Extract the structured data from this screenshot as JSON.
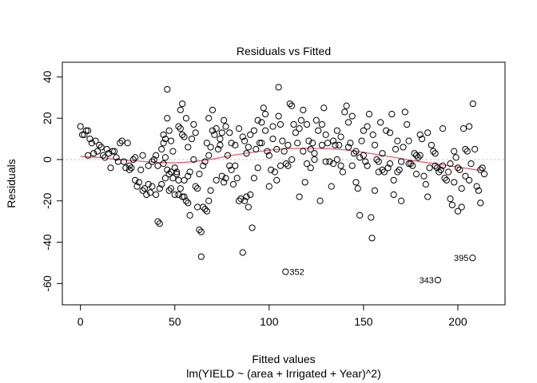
{
  "chart_data": {
    "type": "scatter",
    "title": "Residuals vs Fitted",
    "xlabel": "Fitted values",
    "subtitle": "lm(YIELD ~ (area + Irrigated + Year)^2)",
    "ylabel": "Residuals",
    "xlim": [
      -9.6,
      225
    ],
    "ylim": [
      -70.3,
      47.1
    ],
    "x_ticks": [
      0,
      50,
      100,
      150,
      200
    ],
    "y_ticks": [
      -60,
      -40,
      -20,
      0,
      20,
      40
    ],
    "x_tick_labels": [
      "0",
      "50",
      "100",
      "150",
      "200"
    ],
    "y_tick_labels": [
      "-60",
      "-40",
      "-20",
      "0",
      "20",
      "40"
    ],
    "reference_line_y": 0,
    "colors": {
      "points": "#000000",
      "smooth": "#DF536B",
      "reference": "#BEBEBE"
    },
    "points": [
      [
        0,
        16
      ],
      [
        1,
        12
      ],
      [
        2,
        12
      ],
      [
        3,
        14
      ],
      [
        4,
        14
      ],
      [
        5,
        10
      ],
      [
        6,
        8
      ],
      [
        7,
        3
      ],
      [
        4,
        2
      ],
      [
        8,
        9
      ],
      [
        9,
        4
      ],
      [
        10,
        7
      ],
      [
        11,
        6
      ],
      [
        12,
        2
      ],
      [
        13,
        1
      ],
      [
        14,
        5
      ],
      [
        15,
        3
      ],
      [
        16,
        -4
      ],
      [
        17,
        4
      ],
      [
        18,
        4
      ],
      [
        19,
        1
      ],
      [
        20,
        -1
      ],
      [
        21,
        8
      ],
      [
        22,
        9
      ],
      [
        23,
        -1
      ],
      [
        24,
        -4
      ],
      [
        25,
        8
      ],
      [
        26,
        -5
      ],
      [
        27,
        -4
      ],
      [
        28,
        0
      ],
      [
        29,
        -10
      ],
      [
        30,
        -13
      ],
      [
        31,
        -11
      ],
      [
        32,
        -5
      ],
      [
        33,
        -15
      ],
      [
        34,
        -14
      ],
      [
        35,
        -17
      ],
      [
        36,
        -12
      ],
      [
        37,
        -16
      ],
      [
        38,
        -13
      ],
      [
        39,
        0
      ],
      [
        40,
        2
      ],
      [
        41,
        -3
      ],
      [
        42,
        -14
      ],
      [
        43,
        -12
      ],
      [
        44,
        -2
      ],
      [
        45,
        1
      ],
      [
        46,
        -5
      ],
      [
        47,
        -15
      ],
      [
        48,
        -14
      ],
      [
        26,
        -3
      ],
      [
        29,
        1
      ],
      [
        33,
        2
      ],
      [
        36,
        -3
      ],
      [
        38,
        -1
      ],
      [
        40,
        -17
      ],
      [
        41,
        -30
      ],
      [
        42,
        -31
      ],
      [
        44,
        12
      ],
      [
        45,
        10
      ],
      [
        46,
        20
      ],
      [
        46,
        34
      ],
      [
        47,
        14
      ],
      [
        48,
        9
      ],
      [
        49,
        4
      ],
      [
        50,
        -4
      ],
      [
        51,
        -6
      ],
      [
        52,
        16
      ],
      [
        53,
        15
      ],
      [
        54,
        12
      ],
      [
        55,
        -10
      ],
      [
        56,
        20
      ],
      [
        57,
        -8
      ],
      [
        58,
        -6
      ],
      [
        50,
        -17
      ],
      [
        52,
        -17
      ],
      [
        53,
        -14
      ],
      [
        55,
        -18
      ],
      [
        43,
        5
      ],
      [
        44,
        8
      ],
      [
        45,
        -9
      ],
      [
        47,
        -7
      ],
      [
        48,
        -6
      ],
      [
        49,
        -9
      ],
      [
        51,
        -7
      ],
      [
        52,
        -10
      ],
      [
        54,
        -18
      ],
      [
        56,
        -20
      ],
      [
        57,
        -21
      ],
      [
        58,
        -27
      ],
      [
        53,
        24
      ],
      [
        54,
        27
      ],
      [
        55,
        11
      ],
      [
        57,
        6
      ],
      [
        59,
        10
      ],
      [
        60,
        17
      ],
      [
        61,
        13
      ],
      [
        62,
        -23
      ],
      [
        63,
        -34
      ],
      [
        64,
        -35
      ],
      [
        64,
        -47
      ],
      [
        65,
        -23
      ],
      [
        66,
        -24
      ],
      [
        67,
        -25
      ],
      [
        68,
        -20
      ],
      [
        69,
        -15
      ],
      [
        60,
        0
      ],
      [
        61,
        -13
      ],
      [
        62,
        -14
      ],
      [
        63,
        -7
      ],
      [
        65,
        -3
      ],
      [
        66,
        -1
      ],
      [
        67,
        8
      ],
      [
        68,
        2
      ],
      [
        69,
        6
      ],
      [
        70,
        14
      ],
      [
        71,
        12
      ],
      [
        72,
        -10
      ],
      [
        73,
        5
      ],
      [
        74,
        7
      ],
      [
        75,
        -8
      ],
      [
        76,
        -11
      ],
      [
        77,
        -9
      ],
      [
        78,
        2
      ],
      [
        79,
        -3
      ],
      [
        80,
        -5
      ],
      [
        81,
        -12
      ],
      [
        82,
        -3
      ],
      [
        83,
        -9
      ],
      [
        84,
        -20
      ],
      [
        85,
        -19
      ],
      [
        86,
        -45
      ],
      [
        87,
        -20
      ],
      [
        88,
        -18
      ],
      [
        89,
        -23
      ],
      [
        90,
        -17
      ],
      [
        91,
        -33
      ],
      [
        68,
        20
      ],
      [
        70,
        24
      ],
      [
        72,
        15
      ],
      [
        74,
        10
      ],
      [
        75,
        13
      ],
      [
        76,
        19
      ],
      [
        77,
        16
      ],
      [
        79,
        13
      ],
      [
        80,
        8
      ],
      [
        82,
        7
      ],
      [
        84,
        15
      ],
      [
        86,
        11
      ],
      [
        87,
        9
      ],
      [
        88,
        3
      ],
      [
        89,
        6
      ],
      [
        90,
        12
      ],
      [
        92,
        -9
      ],
      [
        93,
        5
      ],
      [
        94,
        -4
      ],
      [
        95,
        8
      ],
      [
        96,
        18
      ],
      [
        97,
        25
      ],
      [
        98,
        14
      ],
      [
        99,
        4
      ],
      [
        100,
        -13
      ],
      [
        101,
        -5
      ],
      [
        102,
        10
      ],
      [
        103,
        -6
      ],
      [
        104,
        -10
      ],
      [
        105,
        21
      ],
      [
        106,
        17
      ],
      [
        105,
        35
      ],
      [
        107,
        9
      ],
      [
        108,
        4
      ],
      [
        109,
        -2
      ],
      [
        110,
        7
      ],
      [
        111,
        27
      ],
      [
        112,
        26
      ],
      [
        113,
        17
      ],
      [
        108.7,
        -54.3
      ],
      [
        114,
        13
      ],
      [
        115,
        8
      ],
      [
        116,
        15
      ],
      [
        117,
        19
      ],
      [
        118,
        24
      ],
      [
        119,
        -11
      ],
      [
        120,
        17
      ],
      [
        121,
        9
      ],
      [
        122,
        5
      ],
      [
        123,
        8
      ],
      [
        124,
        3
      ],
      [
        125,
        19
      ],
      [
        126,
        14
      ],
      [
        127,
        -20
      ],
      [
        128,
        7
      ],
      [
        129,
        25
      ],
      [
        130,
        12
      ],
      [
        131,
        8
      ],
      [
        132,
        -1
      ],
      [
        133,
        -13
      ],
      [
        134,
        -2
      ],
      [
        135,
        7
      ],
      [
        136,
        14
      ],
      [
        137,
        7
      ],
      [
        138,
        11
      ],
      [
        139,
        -6
      ],
      [
        140,
        23
      ],
      [
        141,
        26
      ],
      [
        142,
        18
      ],
      [
        143,
        8
      ],
      [
        144,
        -3
      ],
      [
        145,
        3
      ],
      [
        146,
        -11
      ],
      [
        147,
        -14
      ],
      [
        148,
        -27
      ],
      [
        149,
        9
      ],
      [
        150,
        2
      ],
      [
        151,
        -1
      ],
      [
        152,
        16
      ],
      [
        153,
        22
      ],
      [
        154,
        -28
      ],
      [
        154.5,
        -38
      ],
      [
        155,
        12
      ],
      [
        156,
        7
      ],
      [
        157,
        0
      ],
      [
        158,
        -1
      ],
      [
        159,
        18
      ],
      [
        160,
        -5
      ],
      [
        161,
        -6
      ],
      [
        162,
        14
      ],
      [
        163,
        -4
      ],
      [
        164,
        -2
      ],
      [
        165,
        22
      ],
      [
        166,
        -10
      ],
      [
        167,
        5
      ],
      [
        168,
        9
      ],
      [
        169,
        -5
      ],
      [
        170,
        -1
      ],
      [
        171,
        6
      ],
      [
        172,
        23
      ],
      [
        173,
        17
      ],
      [
        174,
        -2
      ],
      [
        175,
        -2
      ],
      [
        176,
        -3
      ],
      [
        177,
        3
      ],
      [
        178,
        2
      ],
      [
        179,
        1
      ],
      [
        180,
        12
      ],
      [
        181,
        10
      ],
      [
        182,
        -8
      ],
      [
        183,
        -12
      ],
      [
        184,
        -18
      ],
      [
        185,
        -4
      ],
      [
        186,
        7
      ],
      [
        187,
        4
      ],
      [
        188,
        3
      ],
      [
        189,
        -4
      ],
      [
        189.4,
        -58.3
      ],
      [
        190,
        -6
      ],
      [
        191,
        -5
      ],
      [
        192,
        -3
      ],
      [
        193,
        -9
      ],
      [
        194,
        -10
      ],
      [
        195,
        -6
      ],
      [
        196,
        -19
      ],
      [
        197,
        -22
      ],
      [
        198,
        -11
      ],
      [
        199,
        1
      ],
      [
        200,
        -4
      ],
      [
        201,
        -5
      ],
      [
        202,
        -14
      ],
      [
        203,
        15
      ],
      [
        204,
        -8
      ],
      [
        205,
        4
      ],
      [
        206,
        -10
      ],
      [
        207,
        -2
      ],
      [
        207.8,
        -47.6
      ],
      [
        208,
        27
      ],
      [
        209,
        5
      ],
      [
        210,
        -13
      ],
      [
        211,
        -15
      ],
      [
        212,
        -5
      ],
      [
        213,
        -4
      ],
      [
        92,
        14
      ],
      [
        94,
        19
      ],
      [
        96,
        8
      ],
      [
        98,
        22
      ],
      [
        100,
        2
      ],
      [
        102,
        16
      ],
      [
        104,
        5
      ],
      [
        106,
        -3
      ],
      [
        110,
        -3
      ],
      [
        112,
        0
      ],
      [
        116,
        -18
      ],
      [
        118,
        4
      ],
      [
        120,
        -2
      ],
      [
        122,
        -4
      ],
      [
        124,
        0
      ],
      [
        128,
        17
      ],
      [
        130,
        -1
      ],
      [
        134,
        9
      ],
      [
        136,
        0
      ],
      [
        138,
        -3
      ],
      [
        142,
        6
      ],
      [
        144,
        21
      ],
      [
        146,
        4
      ],
      [
        148,
        1
      ],
      [
        150,
        14
      ],
      [
        152,
        -3
      ],
      [
        156,
        -15
      ],
      [
        158,
        -6
      ],
      [
        160,
        3
      ],
      [
        164,
        13
      ],
      [
        166,
        -17
      ],
      [
        168,
        -6
      ],
      [
        170,
        -20
      ],
      [
        174,
        9
      ],
      [
        178,
        -7
      ],
      [
        180,
        2
      ],
      [
        184,
        13
      ],
      [
        188,
        -3
      ],
      [
        192,
        15
      ],
      [
        196,
        -2
      ],
      [
        198,
        4
      ],
      [
        200,
        -25
      ],
      [
        202,
        -23
      ],
      [
        204,
        5
      ],
      [
        206,
        16
      ],
      [
        212,
        -21
      ],
      [
        214,
        -7
      ]
    ],
    "labeled_points": [
      {
        "label": "352",
        "x": 108.7,
        "y": -54.3,
        "side": "right"
      },
      {
        "label": "343",
        "x": 189.4,
        "y": -58.3,
        "side": "left"
      },
      {
        "label": "395",
        "x": 207.8,
        "y": -47.6,
        "side": "left"
      }
    ],
    "smooth_line": {
      "x": [
        0,
        10,
        20,
        30,
        40,
        50,
        60,
        70,
        80,
        90,
        100,
        110,
        120,
        130,
        140,
        150,
        160,
        170,
        180,
        190,
        200,
        210,
        213
      ],
      "y": [
        1.5,
        1,
        0,
        -0.7,
        -1.3,
        -1.6,
        -1,
        0.2,
        2,
        3.4,
        4.6,
        5.3,
        5.5,
        5.3,
        4.7,
        3.5,
        2,
        0.5,
        -1,
        -2.3,
        -3.6,
        -5,
        -5.4
      ]
    }
  }
}
